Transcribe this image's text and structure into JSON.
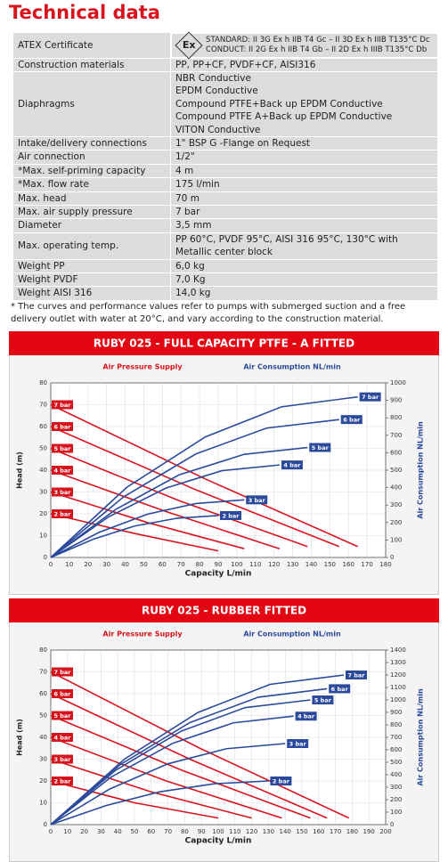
{
  "title": "Technical data",
  "table": {
    "atex_logo": "Ex",
    "rows": [
      [
        "ATEX Certificate",
        [
          "STANDARD: II 3G Ex h IIB T4 Gc – II 3D Ex h IIIB T135°C Dc",
          "CONDUCT: II 2G Ex h IIB T4 Gb – II 2D Ex h IIIB T135°C Db"
        ]
      ],
      [
        "Construction materials",
        [
          "PP, PP+CF, PVDF+CF, AISI316"
        ]
      ],
      [
        "Diaphragms",
        [
          "NBR Conductive",
          "EPDM Conductive",
          "Compound PTFE+Back up EPDM Conductive",
          "Compound PTFE A+Back up EPDM Conductive",
          "VITON Conductive"
        ]
      ],
      [
        "Intake/delivery connections",
        [
          "1\" BSP G -Flange on Request"
        ]
      ],
      [
        "Air connection",
        [
          "1/2\""
        ]
      ],
      [
        "*Max. self-priming capacity",
        [
          "4 m"
        ]
      ],
      [
        "*Max. flow rate",
        [
          "175  l/min"
        ]
      ],
      [
        "Max. head",
        [
          "70 m"
        ]
      ],
      [
        "Max. air supply pressure",
        [
          "7 bar"
        ]
      ],
      [
        "Diameter",
        [
          "3,5 mm"
        ]
      ],
      [
        "Max. operating temp.",
        [
          "PP 60°C, PVDF 95°C,  AISI 316 95°C, 130°C with Metallic center block"
        ]
      ],
      [
        "Weight  PP",
        [
          "6,0 kg"
        ]
      ],
      [
        "Weight PVDF",
        [
          "7,0 Kg"
        ]
      ],
      [
        "Weight AISI 316",
        [
          "14,0 kg"
        ]
      ]
    ]
  },
  "note": "* The curves and performance values refer to pumps with submerged suction and a free delivery outlet with water at 20°C, and vary according to the construction material.",
  "chart_data": [
    {
      "type": "line",
      "title": "RUBY 025  - FULL CAPACITY PTFE - A FITTED",
      "pressure_caption": "Air Pressure Supply",
      "consumption_caption": "Air Consumption NL/min",
      "xlabel": "Capacity L/min",
      "ylabel": "Head (m)",
      "y2label": "Air Consumption NL/min",
      "xlim": [
        0,
        180
      ],
      "xticks": [
        0,
        10,
        20,
        30,
        40,
        50,
        60,
        70,
        80,
        90,
        100,
        110,
        120,
        130,
        140,
        150,
        160,
        170,
        180
      ],
      "ylim": [
        0,
        80
      ],
      "yticks": [
        0,
        10,
        20,
        30,
        40,
        50,
        60,
        70,
        80
      ],
      "y2lim": [
        0,
        1000
      ],
      "y2ticks": [
        0,
        100,
        200,
        300,
        400,
        500,
        600,
        700,
        800,
        900,
        1000
      ],
      "grid": true,
      "series": [
        {
          "name": "7 bar",
          "color": "#d7141e",
          "x": [
            0,
            83,
            165
          ],
          "values": [
            70,
            36,
            5
          ]
        },
        {
          "name": "6 bar",
          "color": "#d7141e",
          "x": [
            0,
            78,
            155
          ],
          "values": [
            60,
            31,
            5
          ]
        },
        {
          "name": "5 bar",
          "color": "#d7141e",
          "x": [
            0,
            69,
            138
          ],
          "values": [
            50,
            26,
            5
          ]
        },
        {
          "name": "4 bar",
          "color": "#d7141e",
          "x": [
            0,
            62,
            123
          ],
          "values": [
            40,
            21,
            4
          ]
        },
        {
          "name": "3 bar",
          "color": "#d7141e",
          "x": [
            0,
            52,
            104
          ],
          "values": [
            30,
            16,
            4
          ]
        },
        {
          "name": "2 bar",
          "color": "#d7141e",
          "x": [
            0,
            45,
            90
          ],
          "values": [
            20,
            11,
            3
          ]
        },
        {
          "name": "7 bar",
          "color": "#2b4a9b",
          "axis": "y2",
          "x": [
            0,
            41,
            83,
            124,
            165
          ],
          "values": [
            0,
            403,
            690,
            863,
            920
          ]
        },
        {
          "name": "6 bar",
          "color": "#2b4a9b",
          "axis": "y2",
          "x": [
            0,
            39,
            78,
            116,
            155
          ],
          "values": [
            0,
            346,
            593,
            741,
            790
          ]
        },
        {
          "name": "5 bar",
          "color": "#2b4a9b",
          "axis": "y2",
          "x": [
            0,
            35,
            69,
            104,
            138
          ],
          "values": [
            0,
            276,
            473,
            591,
            630
          ]
        },
        {
          "name": "4 bar",
          "color": "#2b4a9b",
          "axis": "y2",
          "x": [
            0,
            31,
            62,
            92,
            123
          ],
          "values": [
            0,
            232,
            398,
            497,
            530
          ]
        },
        {
          "name": "3 bar",
          "color": "#2b4a9b",
          "axis": "y2",
          "x": [
            0,
            26,
            52,
            78,
            104
          ],
          "values": [
            0,
            144,
            248,
            309,
            330
          ]
        },
        {
          "name": "2 bar",
          "color": "#2b4a9b",
          "axis": "y2",
          "x": [
            0,
            23,
            45,
            68,
            90
          ],
          "values": [
            0,
            105,
            180,
            225,
            240
          ]
        }
      ]
    },
    {
      "type": "line",
      "title": "RUBY 025  - RUBBER FITTED",
      "pressure_caption": "Air Pressure Supply",
      "consumption_caption": "Air Consumption NL/min",
      "xlabel": "Capacity L/min",
      "ylabel": "Head (m)",
      "y2label": "Air Consumption NL/min",
      "xlim": [
        0,
        200
      ],
      "xticks": [
        0,
        10,
        20,
        30,
        40,
        50,
        60,
        70,
        80,
        90,
        100,
        110,
        120,
        130,
        140,
        150,
        160,
        170,
        180,
        190,
        200
      ],
      "ylim": [
        0,
        80
      ],
      "yticks": [
        0,
        10,
        20,
        30,
        40,
        50,
        60,
        70,
        80
      ],
      "y2lim": [
        0,
        1400
      ],
      "y2ticks": [
        0,
        100,
        200,
        300,
        400,
        500,
        600,
        700,
        800,
        900,
        1000,
        1100,
        1200,
        1300,
        1400
      ],
      "grid": true,
      "series": [
        {
          "name": "7 bar",
          "color": "#d7141e",
          "x": [
            0,
            89,
            178
          ],
          "values": [
            70,
            35,
            3
          ]
        },
        {
          "name": "6 bar",
          "color": "#d7141e",
          "x": [
            0,
            83,
            165
          ],
          "values": [
            60,
            30,
            3
          ]
        },
        {
          "name": "5 bar",
          "color": "#d7141e",
          "x": [
            0,
            78,
            155
          ],
          "values": [
            50,
            25,
            3
          ]
        },
        {
          "name": "4 bar",
          "color": "#d7141e",
          "x": [
            0,
            69,
            138
          ],
          "values": [
            40,
            20,
            3
          ]
        },
        {
          "name": "3 bar",
          "color": "#d7141e",
          "x": [
            0,
            60,
            120
          ],
          "values": [
            30,
            15,
            3
          ]
        },
        {
          "name": "2 bar",
          "color": "#d7141e",
          "x": [
            0,
            50,
            100
          ],
          "values": [
            20,
            10,
            3
          ]
        },
        {
          "name": "7 bar",
          "color": "#2b4a9b",
          "axis": "y2",
          "x": [
            0,
            44,
            88,
            131,
            175
          ],
          "values": [
            0,
            525,
            900,
            1125,
            1200
          ]
        },
        {
          "name": "6 bar",
          "color": "#2b4a9b",
          "axis": "y2",
          "x": [
            0,
            41,
            83,
            124,
            165
          ],
          "values": [
            0,
            477,
            818,
            1022,
            1090
          ]
        },
        {
          "name": "5 bar",
          "color": "#2b4a9b",
          "axis": "y2",
          "x": [
            0,
            39,
            78,
            116,
            155
          ],
          "values": [
            0,
            438,
            750,
            938,
            1000
          ]
        },
        {
          "name": "4 bar",
          "color": "#2b4a9b",
          "axis": "y2",
          "x": [
            0,
            36,
            73,
            109,
            145
          ],
          "values": [
            0,
            381,
            653,
            816,
            870
          ]
        },
        {
          "name": "3 bar",
          "color": "#2b4a9b",
          "axis": "y2",
          "x": [
            0,
            35,
            70,
            105,
            140
          ],
          "values": [
            0,
            284,
            488,
            609,
            650
          ]
        },
        {
          "name": "2 bar",
          "color": "#2b4a9b",
          "axis": "y2",
          "x": [
            0,
            33,
            65,
            98,
            130
          ],
          "values": [
            0,
            153,
            263,
            328,
            350
          ]
        }
      ]
    }
  ]
}
